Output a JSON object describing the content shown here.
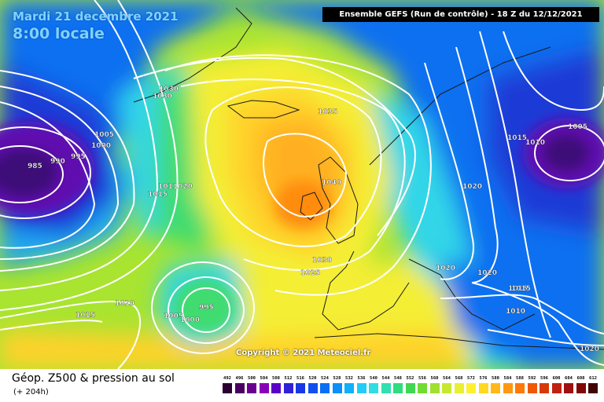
{
  "header": {
    "date_line": "Mardi 21 decembre 2021",
    "time_line": "8:00 locale",
    "run_info": "Ensemble GEFS  (Run de contrôle)  -  18 Z du 12/12/2021"
  },
  "copyright": "Copyright © 2021 Meteociel.fr",
  "footer": {
    "field_title": "Géop. Z500 & pression au sol",
    "lead_time": "(+ 204h)"
  },
  "legend": {
    "labels": [
      "492",
      "496",
      "500",
      "504",
      "508",
      "512",
      "516",
      "520",
      "524",
      "528",
      "532",
      "536",
      "540",
      "544",
      "548",
      "552",
      "556",
      "560",
      "564",
      "568",
      "572",
      "576",
      "580",
      "584",
      "588",
      "592",
      "596",
      "600",
      "604",
      "608",
      "612"
    ],
    "colors": [
      "#2a0030",
      "#4a0060",
      "#6a0090",
      "#8a00b8",
      "#5a00c8",
      "#3020d8",
      "#1838e6",
      "#1050f0",
      "#0870f4",
      "#0a90f8",
      "#10b0fa",
      "#20cdf6",
      "#30dde0",
      "#30e0b0",
      "#30dc80",
      "#40d850",
      "#70dc30",
      "#a0e030",
      "#c8e830",
      "#e8f030",
      "#fff030",
      "#ffd820",
      "#ffb818",
      "#ff9810",
      "#ff7808",
      "#f05808",
      "#d83808",
      "#c02010",
      "#a01010",
      "#800808",
      "#400404"
    ]
  },
  "map": {
    "colors": {
      "deep": "#3c0a78",
      "purple": "#6010b0",
      "blue_dark": "#1a3ad6",
      "blue": "#1070f0",
      "blue_light": "#1aaaf4",
      "cyan": "#30d6e8",
      "green": "#40dc70",
      "lime": "#a8e430",
      "yellow": "#f4ee34",
      "gold": "#ffd22a",
      "orange": "#ffb020",
      "dark_orange": "#ff8c10"
    },
    "isobars": [
      {
        "label": "985"
      },
      {
        "label": "990"
      },
      {
        "label": "995"
      },
      {
        "label": "1005"
      },
      {
        "label": "1000"
      },
      {
        "label": "1030"
      },
      {
        "label": "1030"
      },
      {
        "label": "1035"
      },
      {
        "label": "1040"
      },
      {
        "label": "1011020"
      },
      {
        "label": "1015"
      },
      {
        "label": "1030"
      },
      {
        "label": "1025"
      },
      {
        "label": "1020"
      },
      {
        "label": "1020"
      },
      {
        "label": "1020"
      },
      {
        "label": "1015"
      },
      {
        "label": "1010"
      },
      {
        "label": "1005"
      },
      {
        "label": "1010"
      },
      {
        "label": "1015"
      },
      {
        "label": "995"
      },
      {
        "label": "1005"
      },
      {
        "label": "1000"
      },
      {
        "label": "1010"
      },
      {
        "label": "1015"
      },
      {
        "label": "1015"
      },
      {
        "label": "1010"
      },
      {
        "label": "1020"
      }
    ]
  }
}
